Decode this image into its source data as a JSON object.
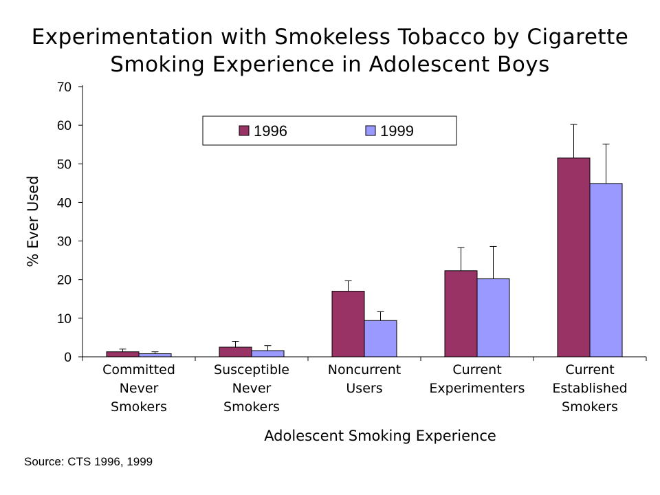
{
  "title": {
    "line1": "Experimentation with Smokeless Tobacco by Cigarette",
    "line2": "Smoking Experience in Adolescent Boys"
  },
  "source": "Source:  CTS 1996, 1999",
  "colors": {
    "series_1996": "#993366",
    "series_1999": "#9999ff"
  },
  "chart_data": {
    "type": "bar",
    "title": "Experimentation with Smokeless Tobacco by Cigarette Smoking Experience in Adolescent Boys",
    "xlabel": "Adolescent Smoking Experience",
    "ylabel": "% Ever Used",
    "ylim": [
      0,
      70
    ],
    "yticks": [
      0,
      10,
      20,
      30,
      40,
      50,
      60,
      70
    ],
    "categories": [
      [
        "Committed",
        "Never",
        "Smokers"
      ],
      [
        "Susceptible",
        "Never",
        "Smokers"
      ],
      [
        "Noncurrent",
        "Users"
      ],
      [
        "Current",
        "Experimenters"
      ],
      [
        "Current",
        "Established",
        "Smokers"
      ]
    ],
    "series": [
      {
        "name": "1996",
        "values": [
          1.3,
          2.5,
          17.0,
          22.3,
          51.5
        ],
        "error_upper": [
          2.0,
          4.0,
          19.7,
          28.3,
          60.2
        ]
      },
      {
        "name": "1999",
        "values": [
          0.8,
          1.6,
          9.4,
          20.2,
          44.9
        ],
        "error_upper": [
          1.3,
          2.9,
          11.7,
          28.6,
          55.1
        ]
      }
    ],
    "grid": false,
    "legend": "top-center"
  }
}
